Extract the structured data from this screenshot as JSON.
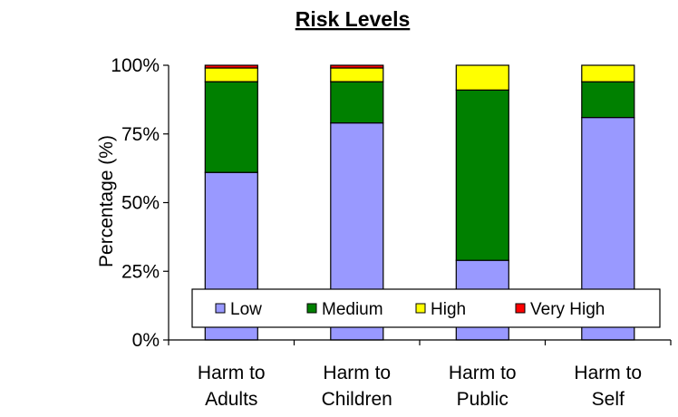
{
  "chart_data": {
    "type": "bar",
    "stacked": true,
    "title": "Risk Levels",
    "ylabel": "Percentage (%)",
    "xlabel": "",
    "ylim": [
      0,
      100
    ],
    "yticks": [
      "0%",
      "25%",
      "50%",
      "75%",
      "100%"
    ],
    "categories": [
      [
        "Harm to",
        "Adults"
      ],
      [
        "Harm to",
        "Children"
      ],
      [
        "Harm to",
        "Public"
      ],
      [
        "Harm to",
        "Self"
      ]
    ],
    "series": [
      {
        "name": "Low",
        "color": "#9999FF",
        "values": [
          61,
          79,
          29,
          81
        ]
      },
      {
        "name": "Medium",
        "color": "#008000",
        "values": [
          33,
          15,
          62,
          13
        ]
      },
      {
        "name": "High",
        "color": "#FFFF00",
        "values": [
          5,
          5,
          9,
          6
        ]
      },
      {
        "name": "Very High",
        "color": "#FF0000",
        "values": [
          1,
          1,
          0,
          0
        ]
      }
    ],
    "legend_position": "bottom-inside",
    "grid": false
  }
}
